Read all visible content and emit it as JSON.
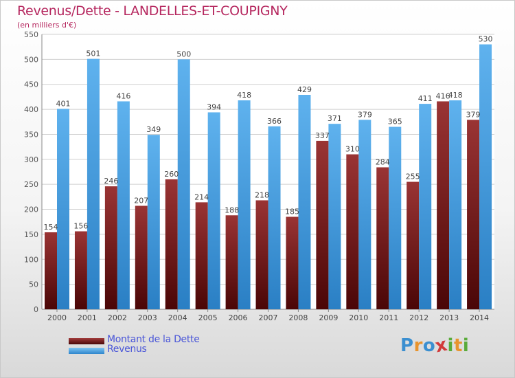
{
  "chart_data": {
    "type": "bar",
    "title": "Revenus/Dette - LANDELLES-ET-COUPIGNY",
    "subtitle": "(en milliers d'€)",
    "categories": [
      "2000",
      "2001",
      "2002",
      "2003",
      "2004",
      "2005",
      "2006",
      "2007",
      "2008",
      "2009",
      "2010",
      "2011",
      "2012",
      "2013",
      "2014"
    ],
    "series": [
      {
        "name": "Montant de la Dette",
        "color": "#7a1f1f",
        "values": [
          154,
          156,
          246,
          207,
          260,
          214,
          188,
          218,
          185,
          337,
          310,
          284,
          255,
          416,
          379
        ]
      },
      {
        "name": "Revenus",
        "color": "#4ea6e6",
        "values": [
          401,
          501,
          416,
          349,
          500,
          394,
          418,
          366,
          429,
          371,
          379,
          365,
          411,
          418,
          530
        ]
      }
    ],
    "y_ticks": [
      0,
      50,
      100,
      150,
      200,
      250,
      300,
      350,
      400,
      450,
      500,
      550
    ],
    "ylim": [
      0,
      550
    ],
    "grid": true,
    "legend_position": "bottom-left"
  },
  "legend": [
    {
      "label": "Montant de la Dette",
      "color": "#7a1f1f"
    },
    {
      "label": "Revenus",
      "color": "#4ea6e6"
    }
  ],
  "logo": {
    "letters": [
      "P",
      "r",
      "o",
      "x",
      "i",
      "t",
      "i"
    ],
    "colors": [
      "#3b8fd0",
      "#e8942e",
      "#3b8fd0",
      "#d23a3a",
      "#5aab3a",
      "#e8942e",
      "#5aab3a"
    ]
  }
}
